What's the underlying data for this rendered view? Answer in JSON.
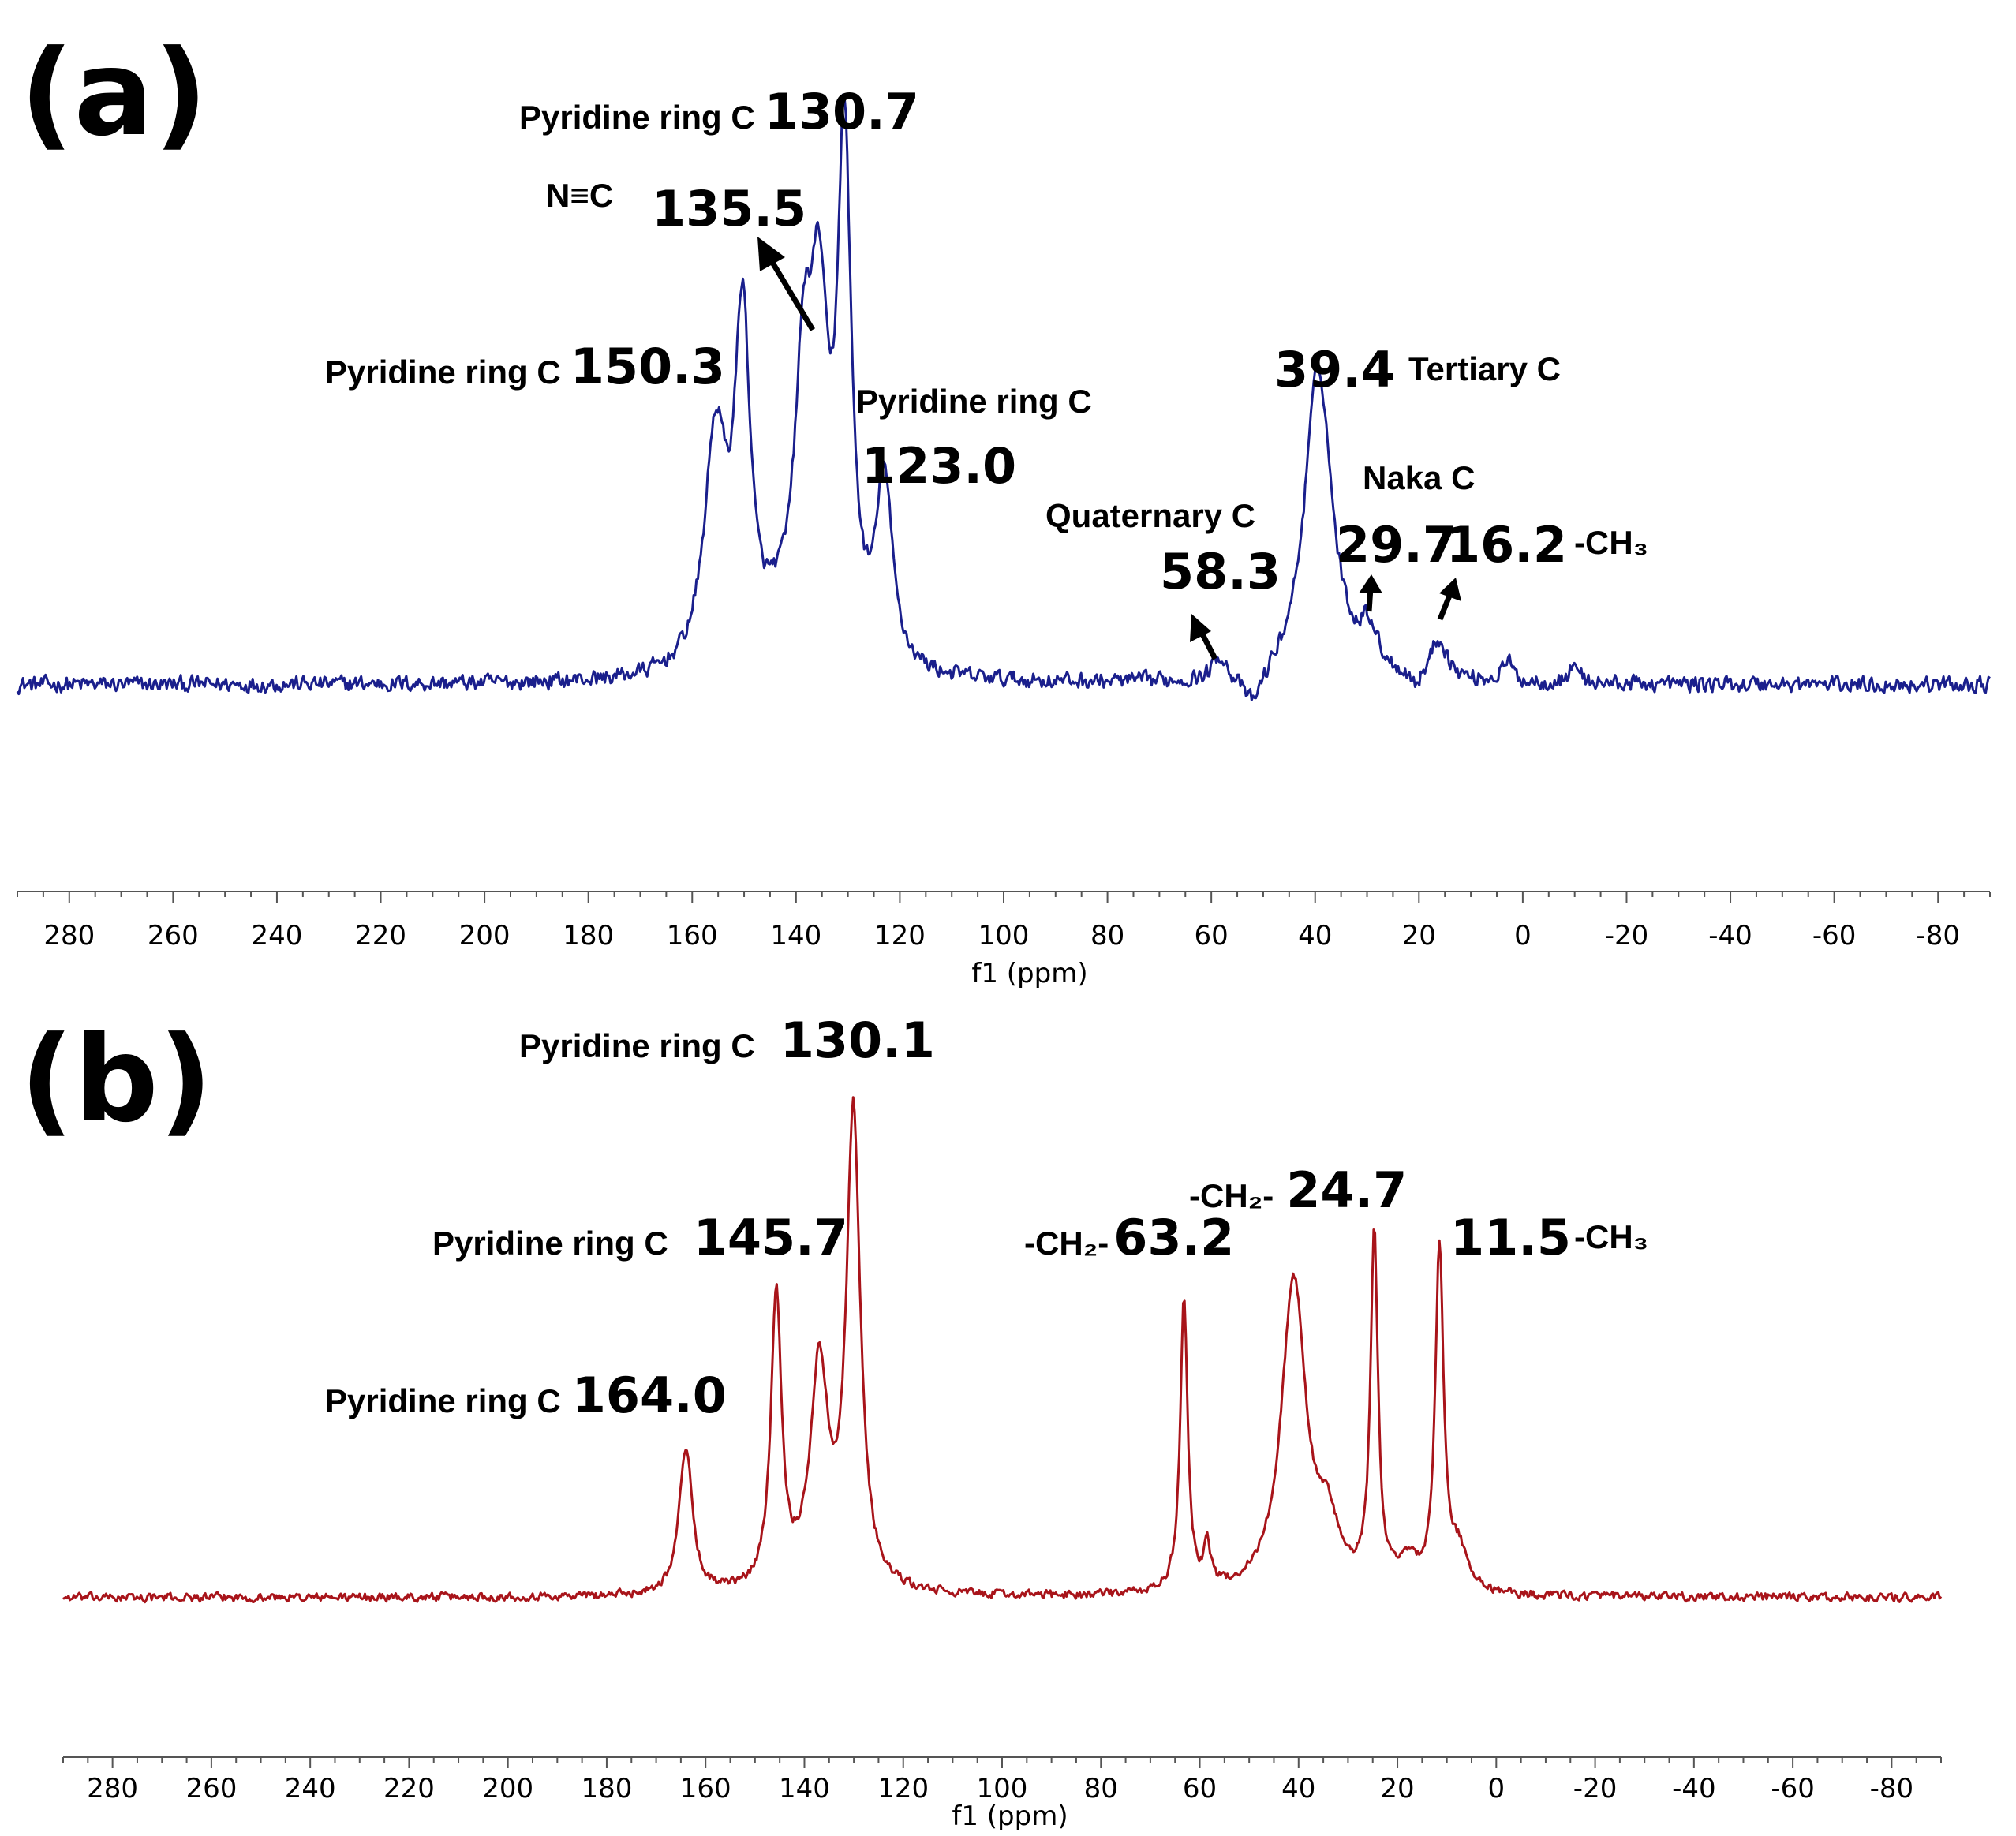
{
  "chart_data": [
    {
      "type": "line",
      "panel": "(a)",
      "xlabel": "f1 (ppm)",
      "xlim": [
        290,
        -90
      ],
      "xticks": [
        280,
        260,
        240,
        220,
        200,
        180,
        160,
        140,
        120,
        100,
        80,
        60,
        40,
        20,
        0,
        -20,
        -40,
        -60,
        -80
      ],
      "xtick_labels": [
        "280",
        "260",
        "240",
        "220",
        "200",
        "180",
        "160",
        "140",
        "120",
        "100",
        "80",
        "60",
        "40",
        "20",
        "0",
        "-20",
        "-40",
        "-60",
        "-80"
      ],
      "ylim": [
        -0.08,
        1.05
      ],
      "grid": false,
      "series": [
        {
          "color": "#1a1f8c",
          "baseline": 0,
          "noise": 0.022,
          "peaks": [
            {
              "ppm": 155.5,
              "height": 0.45,
              "width": 2.6
            },
            {
              "ppm": 150.3,
              "height": 0.66,
              "width": 1.8
            },
            {
              "ppm": 144.0,
              "height": 0.05,
              "width": 3.0
            },
            {
              "ppm": 138.5,
              "height": 0.52,
              "width": 2.2
            },
            {
              "ppm": 135.5,
              "height": 0.58,
              "width": 2.0
            },
            {
              "ppm": 130.7,
              "height": 1.0,
              "width": 1.6
            },
            {
              "ppm": 123.0,
              "height": 0.36,
              "width": 1.9
            },
            {
              "ppm": 58.3,
              "height": 0.05,
              "width": 1.5
            },
            {
              "ppm": 52.0,
              "height": -0.07,
              "width": 2.5
            },
            {
              "ppm": 39.4,
              "height": 0.62,
              "width": 3.2
            },
            {
              "ppm": 29.7,
              "height": 0.08,
              "width": 2.0
            },
            {
              "ppm": 20.5,
              "height": -0.03,
              "width": 1.5
            },
            {
              "ppm": 16.2,
              "height": 0.08,
              "width": 2.0
            },
            {
              "ppm": 3.0,
              "height": 0.04,
              "width": 1.2
            },
            {
              "ppm": -10.0,
              "height": 0.04,
              "width": 1.0
            }
          ]
        }
      ],
      "annotations": [
        {
          "label": "Pyridine ring C",
          "value": "130.7"
        },
        {
          "label": "N≡C",
          "value": "135.5"
        },
        {
          "label": "Pyridine ring C",
          "value": "150.3"
        },
        {
          "label": "Pyridine ring C",
          "value": "123.0"
        },
        {
          "label": "Quaternary C",
          "value": "58.3"
        },
        {
          "label": "Tertiary C",
          "value": "39.4"
        },
        {
          "label": "Naka C",
          "value": "29.7"
        },
        {
          "label": "-CH₃",
          "value": "16.2"
        }
      ]
    },
    {
      "type": "line",
      "panel": "(b)",
      "xlabel": "f1 (ppm)",
      "xlim": [
        290,
        -90
      ],
      "xticks": [
        280,
        260,
        240,
        220,
        200,
        180,
        160,
        140,
        120,
        100,
        80,
        60,
        40,
        20,
        0,
        -20,
        -40,
        -60,
        -80
      ],
      "xtick_labels": [
        "280",
        "260",
        "240",
        "220",
        "200",
        "180",
        "160",
        "140",
        "120",
        "100",
        "80",
        "60",
        "40",
        "20",
        "0",
        "-20",
        "-40",
        "-60",
        "-80"
      ],
      "ylim": [
        -0.05,
        1.05
      ],
      "grid": false,
      "series": [
        {
          "color": "#a8141a",
          "baseline": 0,
          "noise": 0.012,
          "peaks": [
            {
              "ppm": 164.0,
              "height": 0.31,
              "width": 1.6
            },
            {
              "ppm": 145.7,
              "height": 0.62,
              "width": 1.3
            },
            {
              "ppm": 137.0,
              "height": 0.46,
              "width": 2.2
            },
            {
              "ppm": 130.1,
              "height": 1.0,
              "width": 1.7
            },
            {
              "ppm": 63.2,
              "height": 0.62,
              "width": 0.9
            },
            {
              "ppm": 58.5,
              "height": 0.09,
              "width": 0.8
            },
            {
              "ppm": 41.0,
              "height": 0.66,
              "width": 3.0
            },
            {
              "ppm": 34.0,
              "height": 0.12,
              "width": 2.5
            },
            {
              "ppm": 24.7,
              "height": 0.74,
              "width": 0.9
            },
            {
              "ppm": 18.0,
              "height": 0.06,
              "width": 2.5
            },
            {
              "ppm": 11.5,
              "height": 0.72,
              "width": 1.0
            },
            {
              "ppm": 7.5,
              "height": 0.08,
              "width": 2.0
            }
          ]
        }
      ],
      "annotations": [
        {
          "label": "Pyridine ring C",
          "value": "130.1"
        },
        {
          "label": "Pyridine ring C",
          "value": "145.7"
        },
        {
          "label": "Pyridine ring C",
          "value": "164.0"
        },
        {
          "label": "-CH₂-",
          "value": "63.2"
        },
        {
          "label": "-CH₂-",
          "value": "24.7"
        },
        {
          "label": "-CH₃",
          "value": "11.5"
        }
      ]
    }
  ]
}
